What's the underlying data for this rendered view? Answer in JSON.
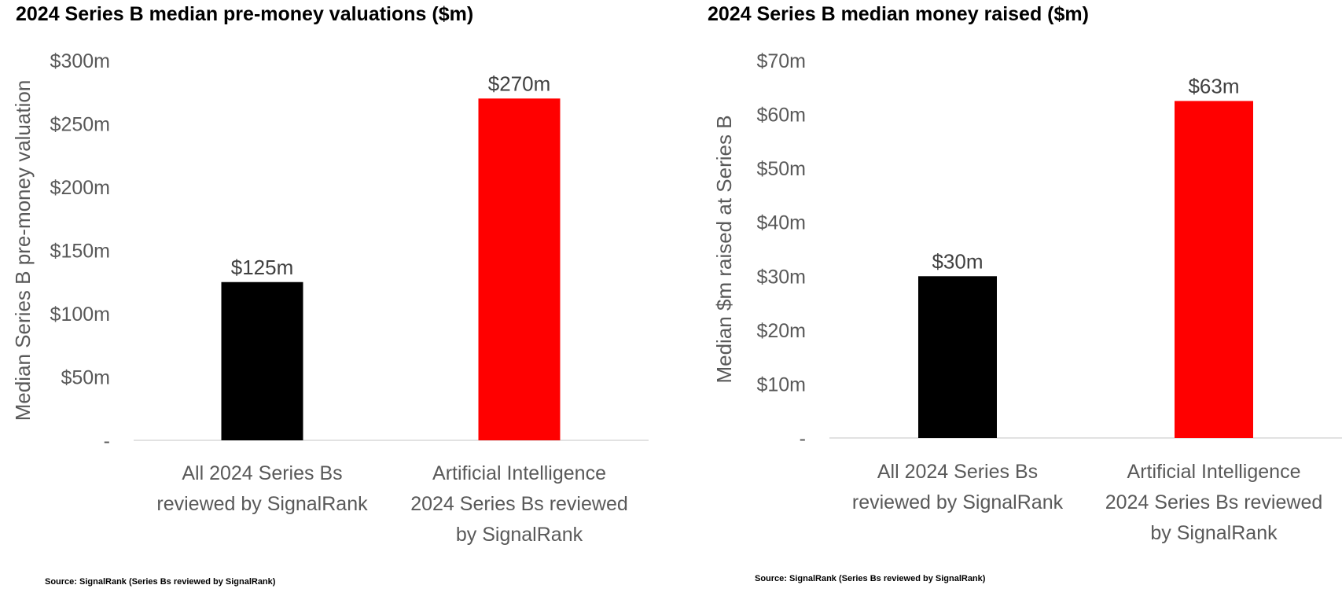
{
  "chart_data": [
    {
      "type": "bar",
      "title": "2024 Series B median pre-money valuations ($m)",
      "ylabel": "Median Series B pre-money valuation",
      "xlabel": "",
      "categories": [
        [
          "All 2024 Series Bs",
          "reviewed by SignalRank"
        ],
        [
          "Artificial Intelligence",
          "2024 Series Bs reviewed",
          "by SignalRank"
        ]
      ],
      "values": [
        125,
        270
      ],
      "data_labels": [
        "$125m",
        "$270m"
      ],
      "bar_colors": [
        "#000000",
        "#ff0000"
      ],
      "ylim": [
        0,
        300
      ],
      "yticks": [
        0,
        50,
        100,
        150,
        200,
        250,
        300
      ],
      "ytick_labels": [
        "-",
        "$50m",
        "$100m",
        "$150m",
        "$200m",
        "$250m",
        "$300m"
      ],
      "grid": false,
      "source": "Source: SignalRank (Series Bs reviewed by SignalRank)"
    },
    {
      "type": "bar",
      "title": "2024 Series B median money raised ($m)",
      "ylabel": "Median $m raised at Series B",
      "xlabel": "",
      "categories": [
        [
          "All 2024 Series Bs",
          "reviewed by SignalRank"
        ],
        [
          "Artificial Intelligence",
          "2024 Series Bs reviewed",
          "by SignalRank"
        ]
      ],
      "values": [
        30,
        62.5
      ],
      "data_labels": [
        "$30m",
        "$63m"
      ],
      "bar_colors": [
        "#000000",
        "#ff0000"
      ],
      "ylim": [
        0,
        70
      ],
      "yticks": [
        0,
        10,
        20,
        30,
        40,
        50,
        60,
        70
      ],
      "ytick_labels": [
        "-",
        "$10m",
        "$20m",
        "$30m",
        "$40m",
        "$50m",
        "$60m",
        "$70m"
      ],
      "grid": false,
      "source": "Source: SignalRank (Series Bs reviewed by SignalRank)"
    }
  ]
}
